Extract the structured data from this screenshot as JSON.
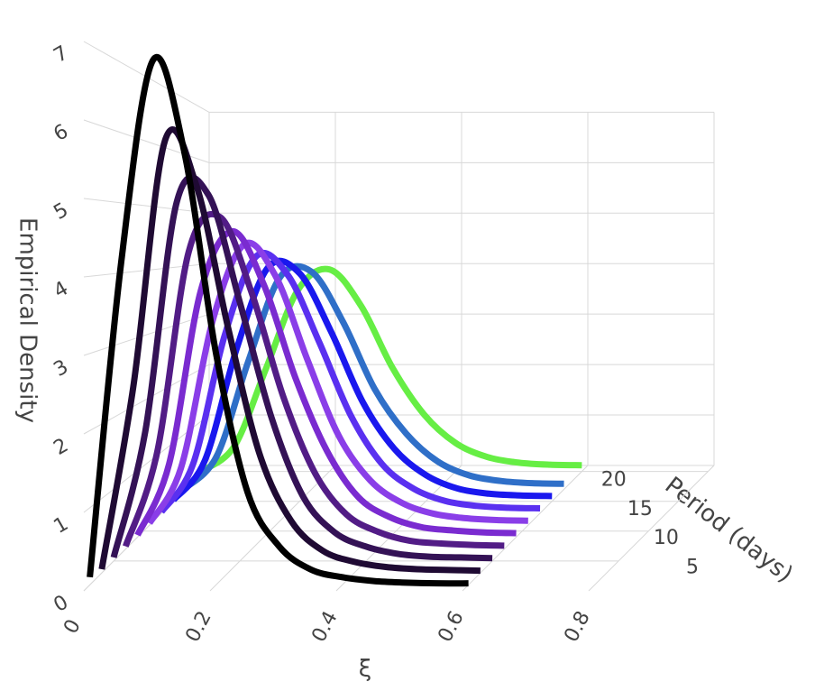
{
  "chart_data": {
    "type": "line3d",
    "xlabel": "ξ",
    "ylabel": "Period (days)",
    "zlabel": "Empirical Density",
    "x": [
      0,
      0.05,
      0.1,
      0.15,
      0.2,
      0.25,
      0.3,
      0.35,
      0.4,
      0.45,
      0.5,
      0.55,
      0.6
    ],
    "xlim": [
      0,
      0.8
    ],
    "xticks": [
      0,
      0.2,
      0.4,
      0.6,
      0.8
    ],
    "ylim": [
      0,
      21
    ],
    "yticks": [
      5,
      10,
      15,
      20
    ],
    "zlim": [
      0,
      7
    ],
    "zticks": [
      0,
      1,
      2,
      3,
      4,
      5,
      6,
      7
    ],
    "grid": true,
    "series": [
      {
        "y": 20,
        "color": "#66ee44",
        "values": [
          0.02,
          0.5,
          2.0,
          3.5,
          3.9,
          3.2,
          2.0,
          1.1,
          0.55,
          0.28,
          0.17,
          0.13,
          0.12
        ]
      },
      {
        "y": 17,
        "color": "#2f6fc8",
        "values": [
          0.02,
          0.6,
          2.3,
          3.8,
          3.9,
          3.0,
          1.8,
          1.0,
          0.5,
          0.25,
          0.15,
          0.11,
          0.1
        ]
      },
      {
        "y": 15,
        "color": "#1a18ee",
        "values": [
          0.02,
          0.7,
          2.6,
          4.0,
          3.9,
          2.9,
          1.7,
          0.9,
          0.45,
          0.22,
          0.13,
          0.1,
          0.09
        ]
      },
      {
        "y": 13,
        "color": "#5a30f0",
        "values": [
          0.02,
          0.8,
          2.9,
          4.2,
          3.9,
          2.8,
          1.6,
          0.8,
          0.4,
          0.2,
          0.12,
          0.09,
          0.08
        ]
      },
      {
        "y": 11,
        "color": "#8a3ee8",
        "values": [
          0.03,
          0.9,
          3.2,
          4.4,
          3.9,
          2.6,
          1.4,
          0.7,
          0.35,
          0.18,
          0.11,
          0.08,
          0.07
        ]
      },
      {
        "y": 9,
        "color": "#7a2bd0",
        "values": [
          0.03,
          1.1,
          3.7,
          4.6,
          3.8,
          2.4,
          1.3,
          0.6,
          0.3,
          0.15,
          0.1,
          0.07,
          0.06
        ]
      },
      {
        "y": 7,
        "color": "#521c86",
        "values": [
          0.04,
          1.4,
          4.3,
          4.8,
          3.7,
          2.2,
          1.1,
          0.5,
          0.25,
          0.12,
          0.08,
          0.06,
          0.05
        ]
      },
      {
        "y": 5,
        "color": "#341256",
        "values": [
          0.05,
          1.8,
          5.0,
          5.1,
          3.6,
          2.0,
          0.9,
          0.4,
          0.2,
          0.1,
          0.06,
          0.05,
          0.04
        ]
      },
      {
        "y": 3,
        "color": "#1f0a33",
        "values": [
          0.05,
          2.5,
          5.8,
          5.2,
          3.3,
          1.6,
          0.7,
          0.3,
          0.15,
          0.08,
          0.05,
          0.04,
          0.03
        ]
      },
      {
        "y": 1,
        "color": "#000000",
        "values": [
          0.1,
          4.2,
          6.8,
          5.6,
          3.0,
          1.2,
          0.5,
          0.2,
          0.1,
          0.05,
          0.03,
          0.02,
          0.02
        ]
      }
    ]
  }
}
